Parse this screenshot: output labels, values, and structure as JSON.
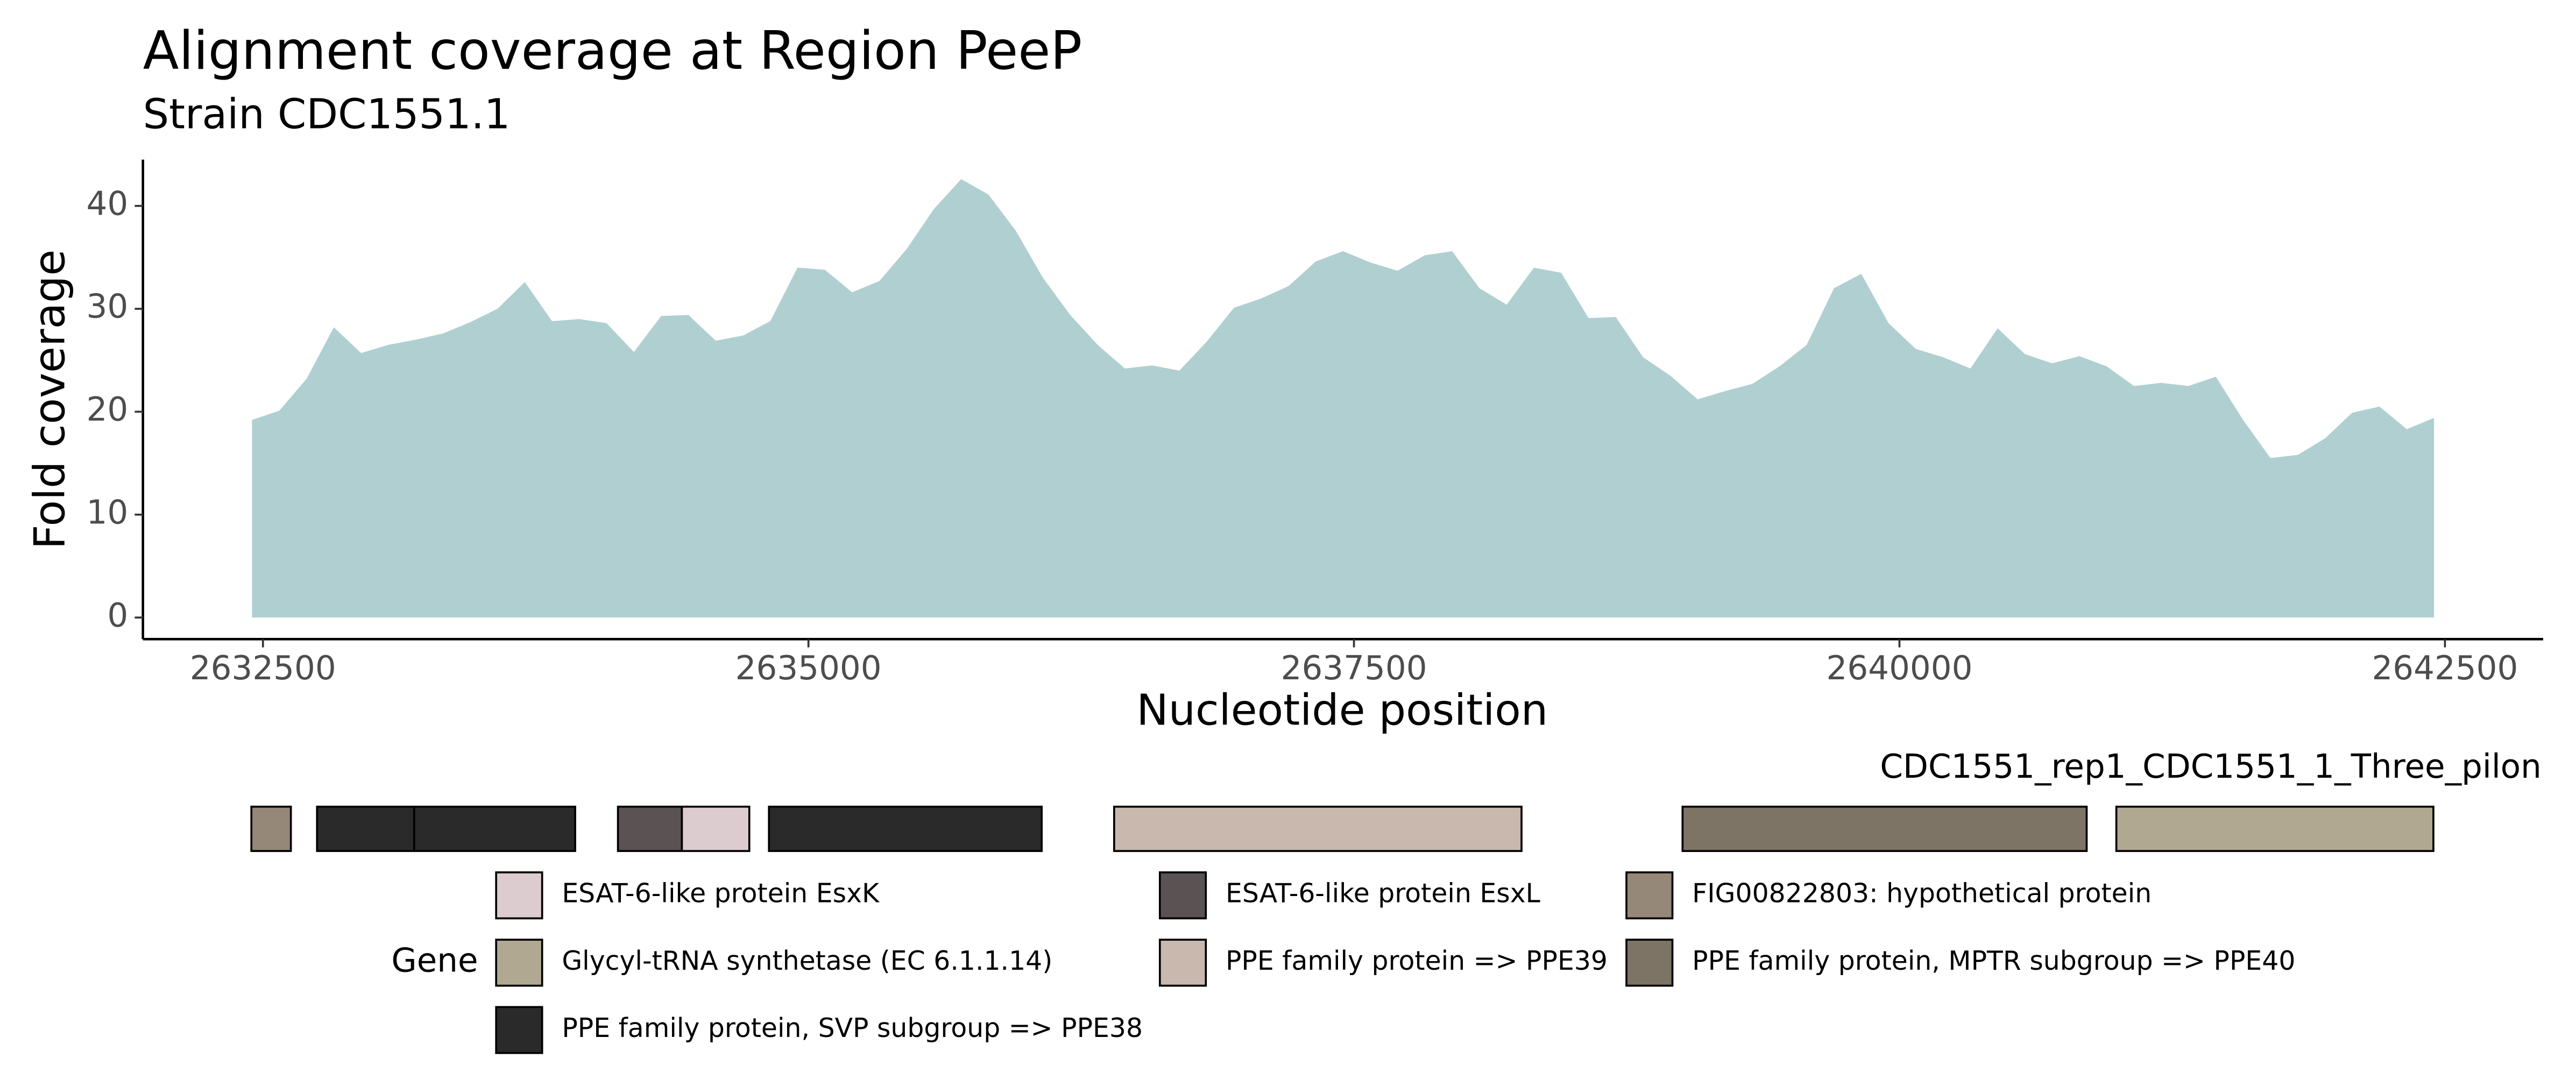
{
  "chart_data": {
    "type": "area",
    "title": "Alignment coverage at Region PeeP",
    "subtitle": "Strain CDC1551.1",
    "x_label": "Nucleotide position",
    "y_label": "Fold coverage",
    "color": "#b0cfd1",
    "x": [
      2632450,
      2632575,
      2632700,
      2632825,
      2632950,
      2633075,
      2633200,
      2633325,
      2633450,
      2633575,
      2633700,
      2633825,
      2633950,
      2634075,
      2634200,
      2634325,
      2634450,
      2634575,
      2634700,
      2634825,
      2634950,
      2635075,
      2635200,
      2635325,
      2635450,
      2635575,
      2635700,
      2635825,
      2635950,
      2636075,
      2636200,
      2636325,
      2636450,
      2636575,
      2636700,
      2636825,
      2636950,
      2637075,
      2637200,
      2637325,
      2637450,
      2637575,
      2637700,
      2637825,
      2637950,
      2638075,
      2638200,
      2638325,
      2638450,
      2638575,
      2638700,
      2638825,
      2638950,
      2639075,
      2639200,
      2639325,
      2639450,
      2639575,
      2639700,
      2639825,
      2639950,
      2640075,
      2640200,
      2640325,
      2640450,
      2640575,
      2640700,
      2640825,
      2640950,
      2641075,
      2641200,
      2641325,
      2641450,
      2641575,
      2641700,
      2641825,
      2641950,
      2642075,
      2642200,
      2642325,
      2642450
    ],
    "values": [
      19.2,
      20.1,
      23.2,
      28.2,
      25.7,
      26.5,
      27.0,
      27.6,
      28.7,
      30.0,
      32.6,
      28.8,
      29.0,
      28.6,
      25.8,
      29.3,
      29.4,
      26.9,
      27.4,
      28.8,
      34.0,
      33.8,
      31.6,
      32.7,
      35.8,
      39.7,
      42.6,
      41.1,
      37.6,
      33.0,
      29.4,
      26.5,
      24.2,
      24.5,
      24.0,
      26.8,
      30.1,
      31.0,
      32.2,
      34.6,
      35.6,
      34.5,
      33.7,
      35.2,
      35.6,
      32.0,
      30.4,
      34.0,
      33.5,
      29.1,
      29.2,
      25.3,
      23.5,
      21.2,
      22.0,
      22.7,
      24.4,
      26.5,
      32.0,
      33.4,
      28.6,
      26.1,
      25.3,
      24.2,
      28.1,
      25.6,
      24.7,
      25.4,
      24.4,
      22.5,
      22.8,
      22.5,
      23.4,
      19.2,
      15.5,
      15.8,
      17.4,
      19.9,
      20.5,
      18.3,
      19.4
    ],
    "xlim": [
      2631950,
      2642950
    ],
    "xticks": [
      2632500,
      2635000,
      2637500,
      2640000,
      2642500
    ],
    "ylim": [
      -2.1,
      44.5
    ],
    "yticks": [
      0,
      10,
      20,
      30,
      40
    ],
    "track_label": "CDC1551_rep1_CDC1551_1_Three_pilon",
    "legend_title": "Gene",
    "legend": [
      {
        "name": "ESAT-6-like protein EsxK",
        "color": "#ddcccf"
      },
      {
        "name": "ESAT-6-like protein EsxL",
        "color": "#5b5253"
      },
      {
        "name": "FIG00822803: hypothetical protein",
        "color": "#968878"
      },
      {
        "name": "Glycyl-tRNA synthetase (EC 6.1.1.14)",
        "color": "#b0a891"
      },
      {
        "name": "PPE family protein => PPE39",
        "color": "#c8b8ae"
      },
      {
        "name": "PPE family protein, MPTR subgroup => PPE40",
        "color": "#7d7465"
      },
      {
        "name": "PPE family protein, SVP subgroup => PPE38",
        "color": "#2a2a2a"
      }
    ],
    "genes": [
      {
        "start": 2632447,
        "end": 2632628,
        "gene": "FIG00822803: hypothetical protein"
      },
      {
        "start": 2632748,
        "end": 2633193,
        "gene": "PPE family protein, SVP subgroup => PPE38"
      },
      {
        "start": 2633193,
        "end": 2633931,
        "gene": "PPE family protein, SVP subgroup => PPE38"
      },
      {
        "start": 2634127,
        "end": 2634420,
        "gene": "ESAT-6-like protein EsxL"
      },
      {
        "start": 2634420,
        "end": 2634729,
        "gene": "ESAT-6-like protein EsxK"
      },
      {
        "start": 2634819,
        "end": 2636069,
        "gene": "PPE family protein, SVP subgroup => PPE38"
      },
      {
        "start": 2636401,
        "end": 2638268,
        "gene": "PPE family protein => PPE39"
      },
      {
        "start": 2639006,
        "end": 2640858,
        "gene": "PPE family protein, MPTR subgroup => PPE40"
      },
      {
        "start": 2640994,
        "end": 2642447,
        "gene": "Glycyl-tRNA synthetase (EC 6.1.1.14)"
      }
    ]
  }
}
